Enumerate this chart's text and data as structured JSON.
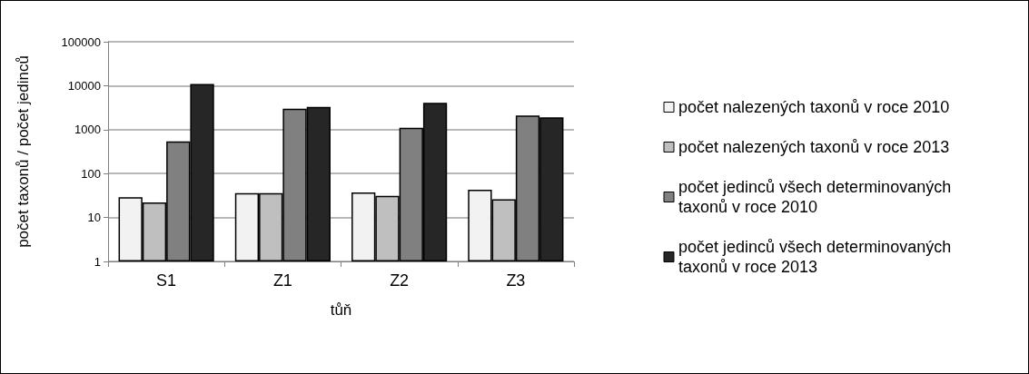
{
  "chart_data": {
    "type": "bar",
    "xlabel": "tůň",
    "ylabel": "počet taxonů / počet jedinců",
    "categories": [
      "S1",
      "Z1",
      "Z2",
      "Z3"
    ],
    "series": [
      {
        "name": "počet nalezených taxonů v roce 2010",
        "color": "#f2f2f2",
        "values": [
          29,
          36,
          37,
          43
        ]
      },
      {
        "name": "počet nalezených taxonů v roce 2013",
        "color": "#bfbfbf",
        "values": [
          22,
          36,
          31,
          26
        ]
      },
      {
        "name": "počet jedinců všech determinovaných taxonů v roce 2010",
        "color": "#808080",
        "values": [
          540,
          3000,
          1100,
          2100
        ]
      },
      {
        "name": "počet jedinců všech determinovaných taxonů v roce 2013",
        "color": "#262626",
        "values": [
          11000,
          3300,
          4100,
          1900
        ]
      }
    ],
    "log": "y",
    "ylim": [
      1,
      100000
    ],
    "yticks": [
      1,
      10,
      100,
      1000,
      10000,
      100000
    ],
    "grid": "y",
    "legend": "right"
  }
}
